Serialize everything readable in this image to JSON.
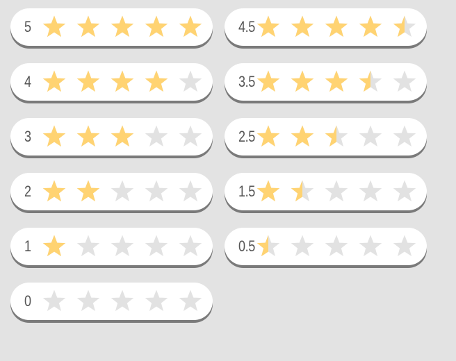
{
  "colors": {
    "star_filled": "#ffd372",
    "star_empty": "#e2e2e2",
    "pill_background": "#ffffff",
    "pill_shadow": "#7a7a7a",
    "page_background": "#e3e3e3",
    "text": "#555555"
  },
  "star_icon": "star-icon",
  "max_stars": 5,
  "ratings": [
    {
      "label": "5",
      "value": 5.0
    },
    {
      "label": "4.5",
      "value": 4.5
    },
    {
      "label": "4",
      "value": 4.0
    },
    {
      "label": "3.5",
      "value": 3.5
    },
    {
      "label": "3",
      "value": 3.0
    },
    {
      "label": "2.5",
      "value": 2.5
    },
    {
      "label": "2",
      "value": 2.0
    },
    {
      "label": "1.5",
      "value": 1.5
    },
    {
      "label": "1",
      "value": 1.0
    },
    {
      "label": "0.5",
      "value": 0.5
    },
    {
      "label": "0",
      "value": 0.0
    }
  ]
}
